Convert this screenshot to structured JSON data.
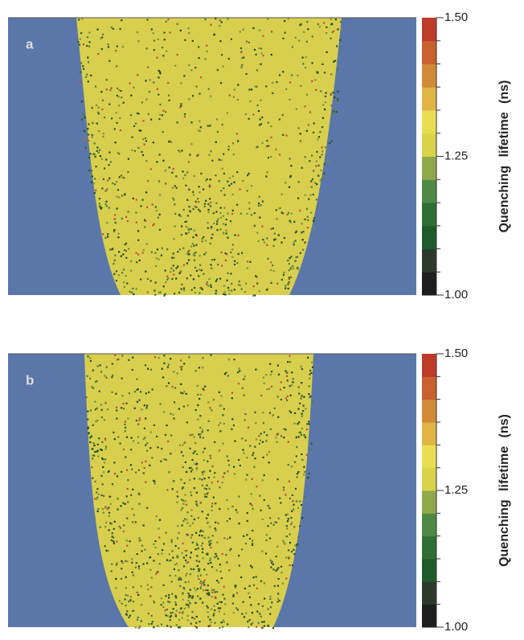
{
  "panels": [
    {
      "label": "a",
      "colorbar": {
        "title": "Quenching lifetime (ns)",
        "lim": [
          1.0,
          1.5
        ],
        "ticks": [
          {
            "value": 1.5,
            "label": "1.50"
          },
          {
            "value": 1.25,
            "label": "1.25"
          },
          {
            "value": 1.0,
            "label": "1.00"
          }
        ],
        "colors": [
          "#1e1e1e",
          "#2b3a2a",
          "#1f5a2a",
          "#2f6e35",
          "#4f8a45",
          "#90a94c",
          "#d9d24a",
          "#e8de52",
          "#e0b545",
          "#d08a38",
          "#c8612e",
          "#c03a2a"
        ]
      }
    },
    {
      "label": "b",
      "colorbar": {
        "title": "Quenching lifetime (ns)",
        "lim": [
          1.0,
          1.5
        ],
        "ticks": [
          {
            "value": 1.5,
            "label": "1.50"
          },
          {
            "value": 1.25,
            "label": "1.25"
          },
          {
            "value": 1.0,
            "label": "1.00"
          }
        ],
        "colors": [
          "#1e1e1e",
          "#2b3a2a",
          "#1f5a2a",
          "#2f6e35",
          "#4f8a45",
          "#90a94c",
          "#d9d24a",
          "#e8de52",
          "#e0b545",
          "#d08a38",
          "#c8612e",
          "#c03a2a"
        ]
      }
    }
  ]
}
